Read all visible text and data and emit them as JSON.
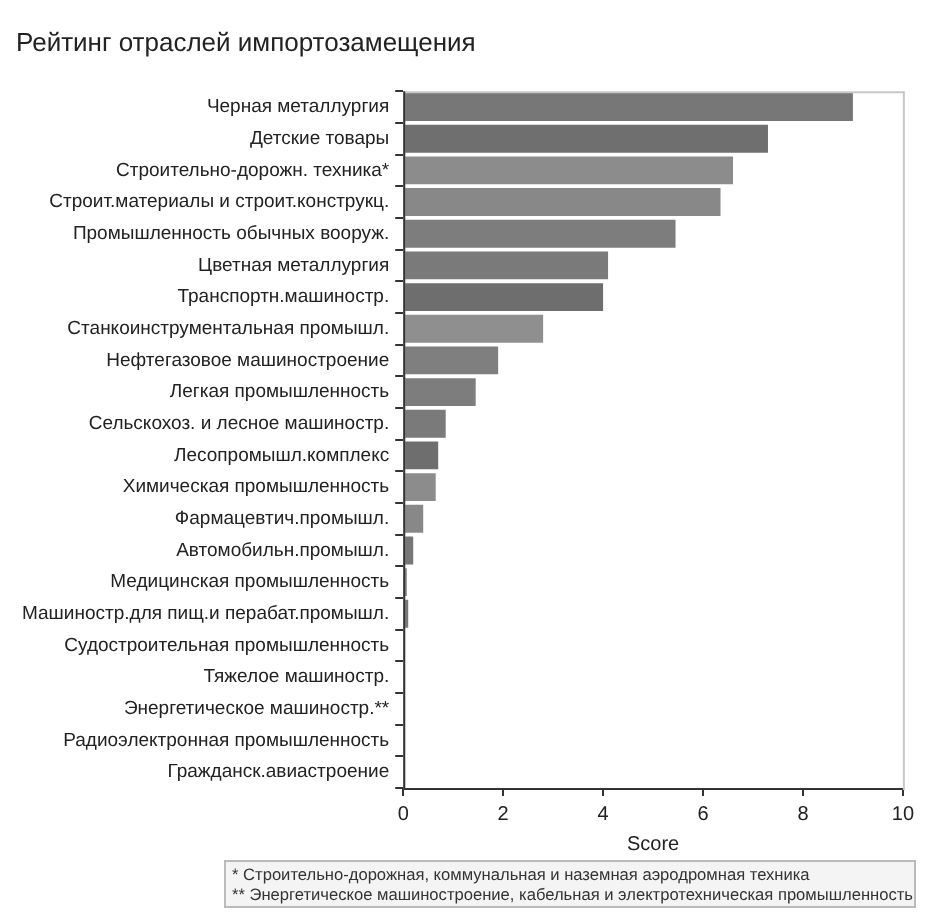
{
  "chart_data": {
    "type": "bar",
    "orientation": "horizontal",
    "title": "Рейтинг отраслей импортозамещения",
    "xlabel": "Score",
    "categories": [
      "Черная металлургия",
      "Детские товары",
      "Строительно-дорожн. техника*",
      "Строит.материалы и строит.конструкц.",
      "Промышленность обычных вооруж.",
      "Цветная металлургия",
      "Транспортн.машиностр.",
      "Станкоинструментальная промышл.",
      "Нефтегазовое машиностроение",
      "Легкая промышленность",
      "Сельскохоз. и лесное машиностр.",
      "Лесопромышл.комплекс",
      "Химическая промышленность",
      "Фармацевтич.промышл.",
      "Автомобильн.промышл.",
      "Медицинская промышленность",
      "Машиностр.для пищ.и перабат.промышл.",
      "Судостроительная промышленность",
      "Тяжелое машиностр.",
      "Энергетическое машиностр.**",
      "Радиоэлектронная промышленность",
      "Гражданск.авиастроение"
    ],
    "values": [
      9.0,
      7.3,
      6.6,
      6.35,
      5.45,
      4.1,
      4.0,
      2.8,
      1.9,
      1.45,
      0.85,
      0.7,
      0.65,
      0.4,
      0.2,
      0.07,
      0.1,
      0.03,
      0,
      0,
      0,
      0
    ],
    "colors": [
      "#777777",
      "#6f6f6f",
      "#8c8c8c",
      "#888888",
      "#7d7d7d",
      "#7a7a7a",
      "#6e6e6e",
      "#8f8f8f",
      "#7f7f7f",
      "#7d7d7d",
      "#7a7a7a",
      "#6e6e6e",
      "#8c8c8c",
      "#888888",
      "#777777",
      "#777777",
      "#777777",
      "#777777",
      "#777777",
      "#777777",
      "#777777",
      "#777777"
    ],
    "xlim": [
      0,
      10
    ],
    "xticks": [
      0,
      2,
      4,
      6,
      8,
      10
    ],
    "grid": false,
    "legend": false,
    "annotations": [
      "* Строительно-дорожная, коммунальная и наземная аэродромная техника",
      "** Энергетическое машиностроение, кабельная и электротехническая промышленность"
    ]
  }
}
